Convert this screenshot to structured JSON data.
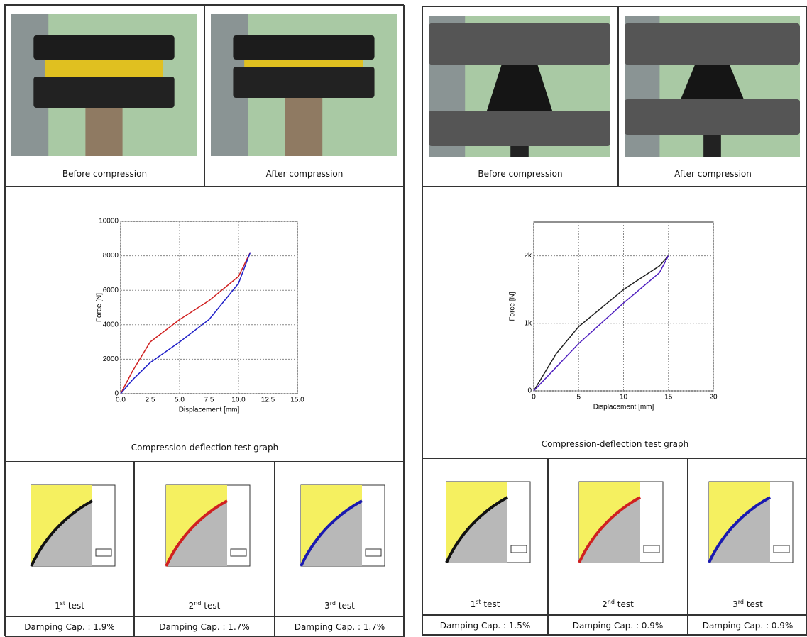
{
  "panels": [
    {
      "photos": [
        "Before compression",
        "After compression"
      ],
      "chart_data": {
        "type": "line",
        "xlabel": "Displacement [mm]",
        "ylabel": "Force [N]",
        "xlim": [
          0,
          15
        ],
        "xticks": [
          {
            "value": 0,
            "label": "0.0"
          },
          {
            "value": 2.5,
            "label": "2.5"
          },
          {
            "value": 5,
            "label": "5.0"
          },
          {
            "value": 7.5,
            "label": "7.5"
          },
          {
            "value": 10,
            "label": "10.0"
          },
          {
            "value": 12.5,
            "label": "12.5"
          },
          {
            "value": 15,
            "label": "15.0"
          }
        ],
        "ylim": [
          0,
          10000
        ],
        "yticks": [
          0,
          2000,
          4000,
          6000,
          8000,
          10000
        ],
        "grid": true,
        "series": [
          {
            "color": "#d02020",
            "x": [
              0,
              1,
              2.5,
              5,
              7.5,
              10,
              11
            ],
            "values": [
              0,
              1300,
              3000,
              4300,
              5400,
              6800,
              8200
            ]
          },
          {
            "color": "#2020c8",
            "x": [
              11,
              10,
              7.5,
              5,
              2.5,
              1,
              0
            ],
            "values": [
              8200,
              6400,
              4300,
              3000,
              1800,
              800,
              0
            ]
          }
        ]
      },
      "caption": "Compression-deflection test graph",
      "tests": [
        {
          "n": "1",
          "sup": "st",
          "word": "test",
          "damping": "Damping Cap. : 1.9%"
        },
        {
          "n": "2",
          "sup": "nd",
          "word": "test",
          "damping": "Damping Cap. :  1.7%"
        },
        {
          "n": "3",
          "sup": "rd",
          "word": "test",
          "damping": "Damping Cap. : 1.7%"
        }
      ]
    },
    {
      "photos": [
        "Before compression",
        "After compression"
      ],
      "chart_data": {
        "type": "line",
        "xlabel": "Displacement [mm]",
        "ylabel": "Force [N]",
        "xlim": [
          0,
          20
        ],
        "xticks": [
          0,
          5,
          10,
          15,
          20
        ],
        "ylim": [
          0,
          2500
        ],
        "yticks": [
          0,
          {
            "value": 1000,
            "label": "1k"
          },
          {
            "value": 2000,
            "label": "2k"
          }
        ],
        "grid": true,
        "series": [
          {
            "color": "#202020",
            "x": [
              0,
              2.5,
              5,
              10,
              14,
              15
            ],
            "values": [
              0,
              550,
              950,
              1500,
              1850,
              2000
            ]
          },
          {
            "color": "#5020c0",
            "x": [
              15,
              14,
              10,
              5,
              2.5,
              0
            ],
            "values": [
              2000,
              1750,
              1300,
              700,
              350,
              0
            ]
          }
        ]
      },
      "caption": "Compression-deflection test graph",
      "tests": [
        {
          "n": "1",
          "sup": "st",
          "word": "test",
          "damping": "Damping Cap. : 1.5%"
        },
        {
          "n": "2",
          "sup": "nd",
          "word": "test",
          "damping": "Damping Cap. : 0.9%"
        },
        {
          "n": "3",
          "sup": "rd",
          "word": "test",
          "damping": "Damping Cap. : 0.9%"
        }
      ]
    }
  ]
}
